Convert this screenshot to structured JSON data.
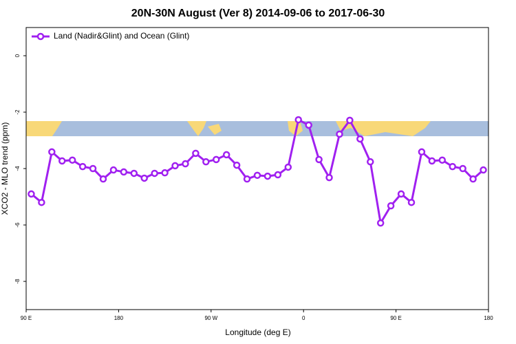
{
  "chart_data": {
    "type": "line",
    "title": "20N-30N August (Ver 8)   2014-09-06 to 2017-06-30",
    "x_label": "Longitude (deg E)",
    "y_label": "XCO2 - MLO trend (ppm)",
    "x": [
      95,
      105,
      115,
      125,
      135,
      145,
      155,
      165,
      175,
      185,
      195,
      205,
      215,
      225,
      235,
      245,
      255,
      265,
      275,
      285,
      295,
      305,
      315,
      325,
      335,
      345,
      355,
      365,
      375,
      385,
      395,
      405,
      415,
      425,
      435,
      445,
      455,
      465,
      475,
      485,
      495,
      505,
      515,
      525,
      535
    ],
    "series": [
      {
        "name": "Land (Nadir&Glint) and Ocean (Glint)",
        "color": "#a020f0",
        "values": [
          -4.9,
          -5.2,
          -3.41,
          -3.73,
          -3.7,
          -3.93,
          -4.0,
          -4.37,
          -4.05,
          -4.12,
          -4.17,
          -4.34,
          -4.17,
          -4.15,
          -3.9,
          -3.83,
          -3.46,
          -3.76,
          -3.68,
          -3.51,
          -3.88,
          -4.37,
          -4.24,
          -4.27,
          -4.22,
          -3.95,
          -2.27,
          -2.46,
          -3.68,
          -4.32,
          -2.78,
          -2.29,
          -2.95,
          -3.76,
          -5.93,
          -5.32,
          -4.9,
          -5.2,
          -3.41,
          -3.73,
          -3.7,
          -3.93,
          -4.0,
          -4.37,
          -4.05
        ]
      }
    ],
    "xlim": [
      90,
      540
    ],
    "xticks": [
      {
        "value": 90,
        "label": "90 E"
      },
      180,
      {
        "value": 270,
        "label": "90 W"
      },
      {
        "value": 360,
        "label": "0"
      },
      {
        "value": 450,
        "label": "90 E"
      },
      {
        "value": 540,
        "label": "180"
      }
    ],
    "ylim": [
      -9,
      1
    ],
    "yticks": [
      0,
      -2,
      -4,
      -6,
      -8
    ],
    "legend": "top-left"
  }
}
